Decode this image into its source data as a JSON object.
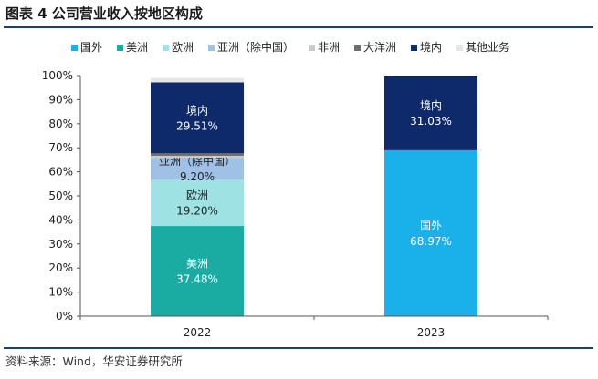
{
  "title": "图表 4 公司营业收入按地区构成",
  "source": "资料来源：Wind，华安证券研究所",
  "chart_data": {
    "type": "bar",
    "stacked": true,
    "categories": [
      "2022",
      "2023"
    ],
    "ylim": [
      0,
      100
    ],
    "yticks": [
      "0%",
      "10%",
      "20%",
      "30%",
      "40%",
      "50%",
      "60%",
      "70%",
      "80%",
      "90%",
      "100%"
    ],
    "legend_position": "top",
    "series": [
      {
        "name": "国外",
        "color": "#1ab0ea",
        "values": [
          0,
          68.97
        ],
        "labels": [
          "",
          "68.97%"
        ]
      },
      {
        "name": "美洲",
        "color": "#1aaba3",
        "values": [
          37.48,
          0
        ],
        "labels": [
          "37.48%",
          ""
        ]
      },
      {
        "name": "欧洲",
        "color": "#9ee2e4",
        "values": [
          19.2,
          0
        ],
        "labels": [
          "19.20%",
          ""
        ]
      },
      {
        "name": "亚洲（除中国）",
        "color": "#9fc1e6",
        "values": [
          9.2,
          0
        ],
        "labels": [
          "9.20%",
          ""
        ]
      },
      {
        "name": "非洲",
        "color": "#c9c9c9",
        "values": [
          0.8,
          0
        ],
        "labels": [
          "",
          ""
        ]
      },
      {
        "name": "大洋洲",
        "color": "#6e6e6e",
        "values": [
          1.0,
          0
        ],
        "labels": [
          "",
          ""
        ]
      },
      {
        "name": "境内",
        "color": "#0e2a6b",
        "values": [
          29.51,
          31.03
        ],
        "labels": [
          "29.51%",
          "31.03%"
        ]
      },
      {
        "name": "其他业务",
        "color": "#e6e6e6",
        "values": [
          1.81,
          0
        ],
        "labels": [
          "",
          ""
        ]
      }
    ]
  }
}
